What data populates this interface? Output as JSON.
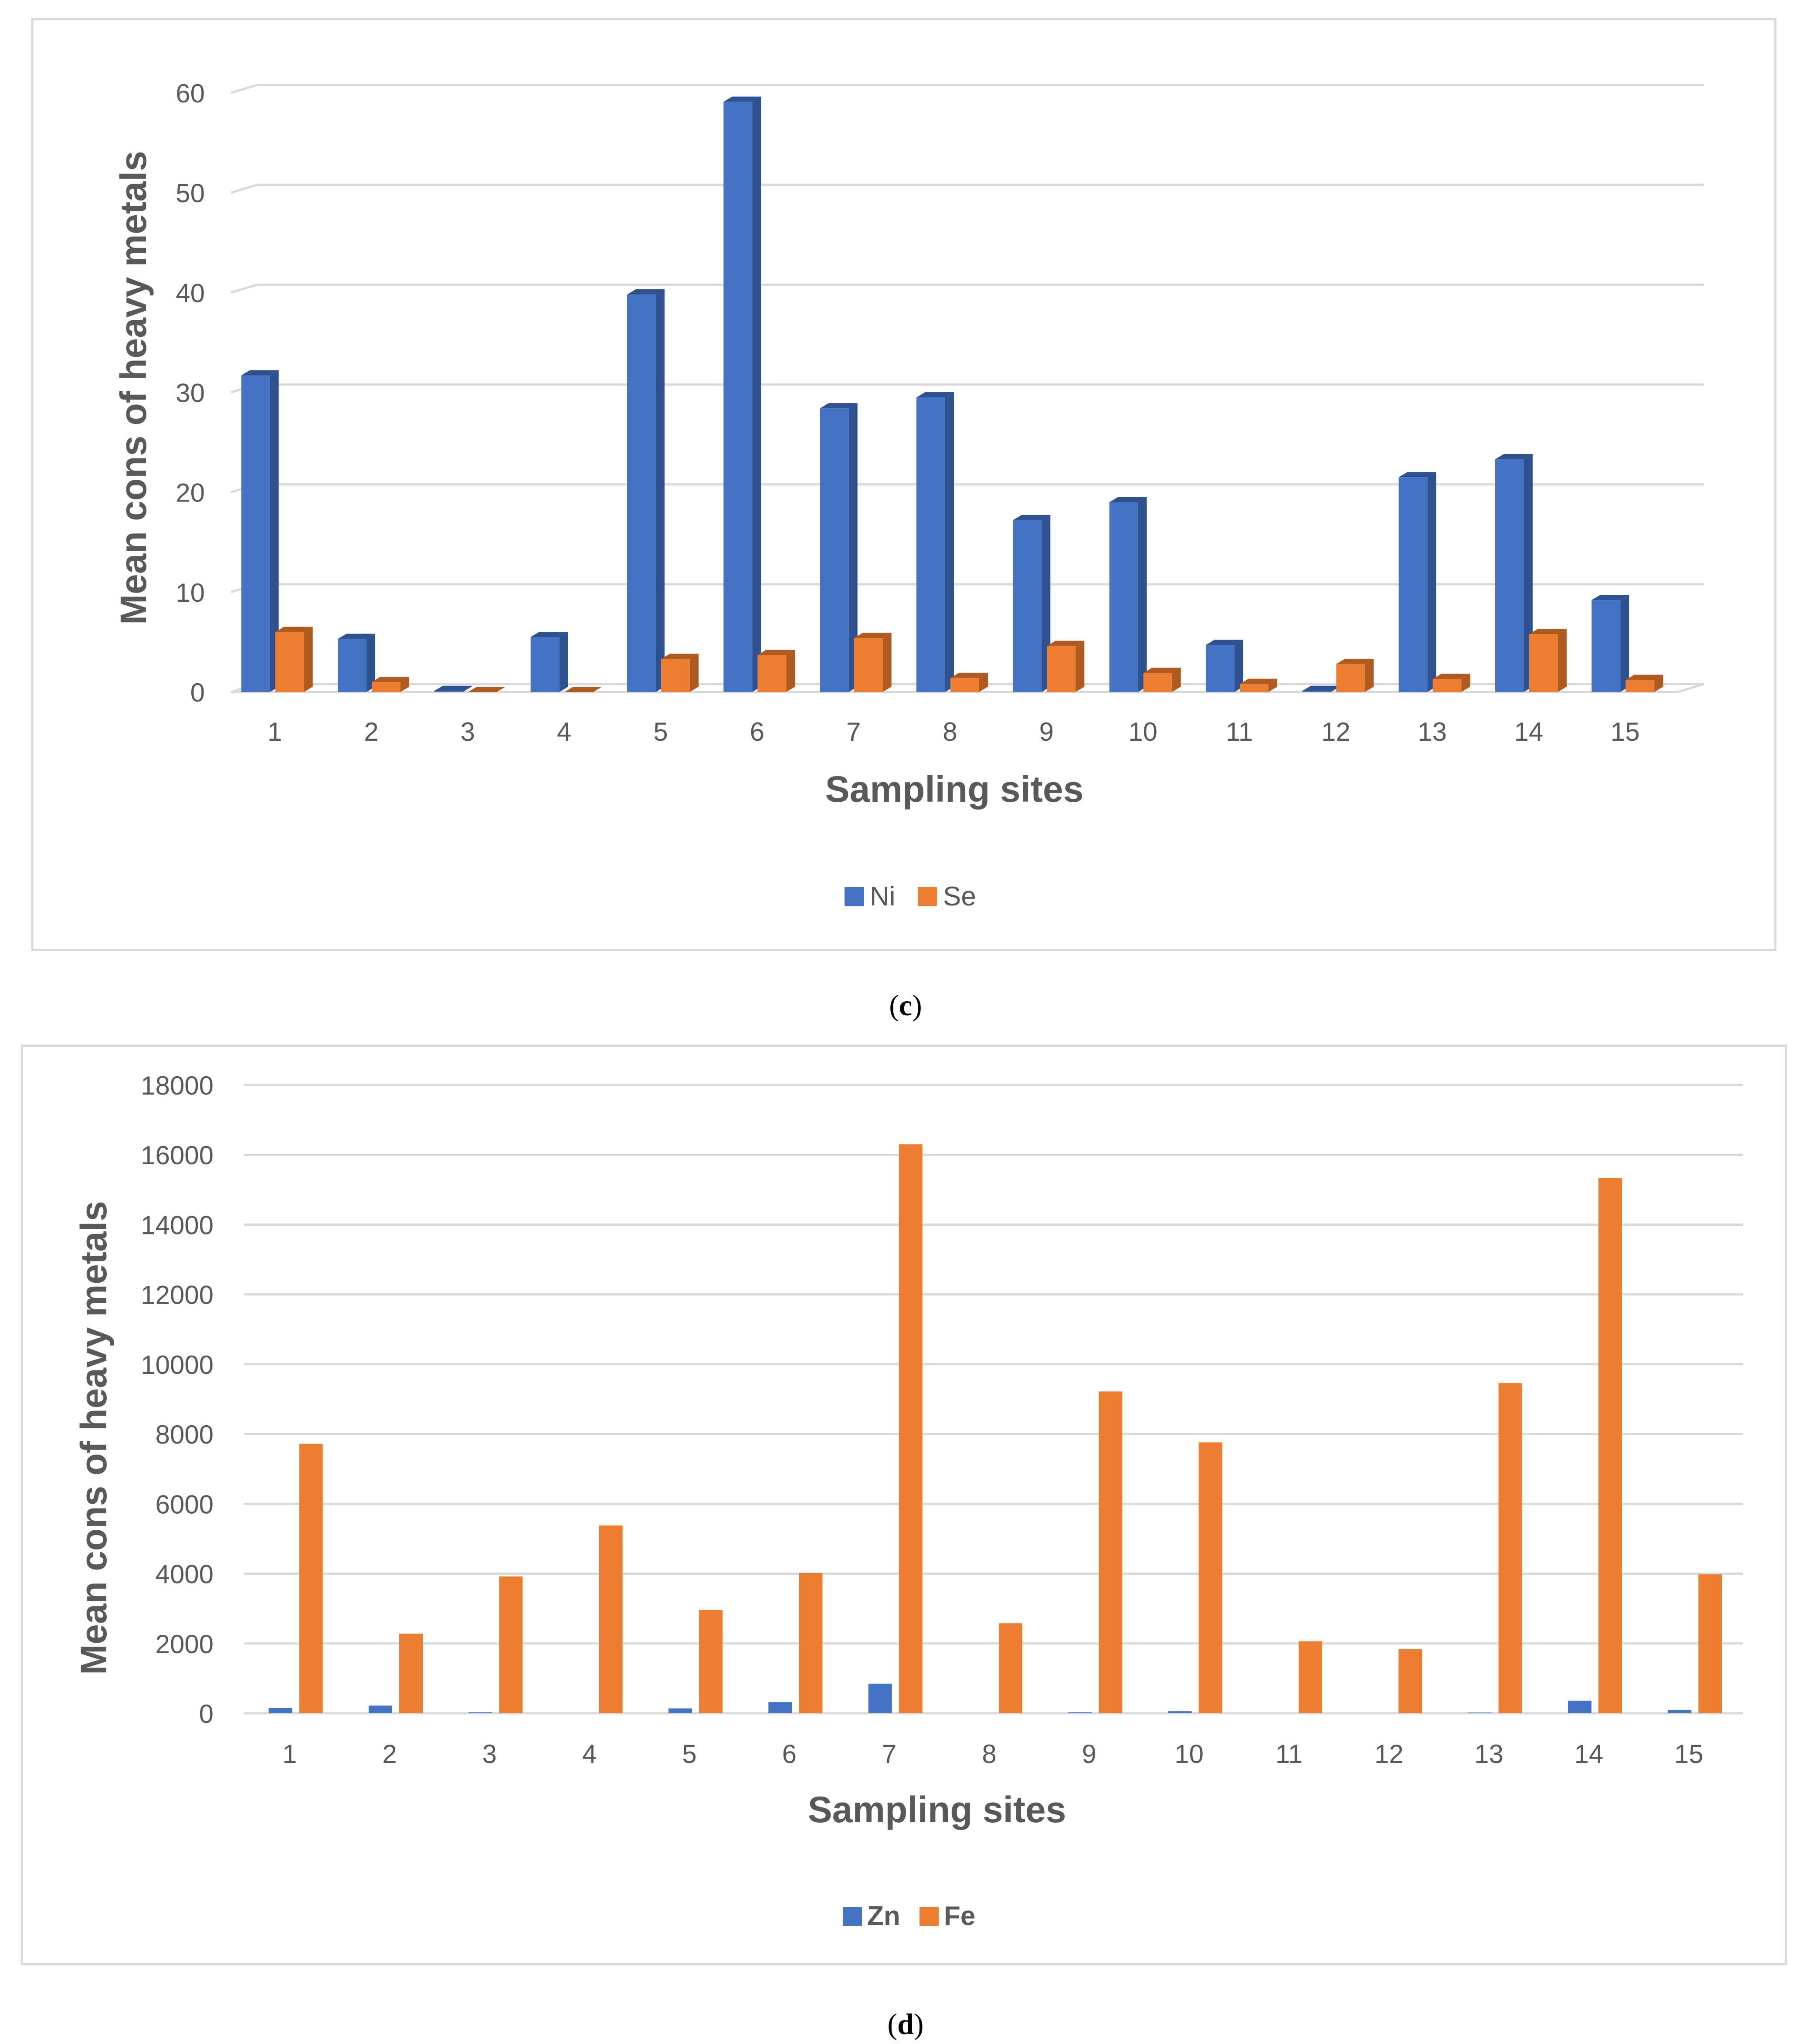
{
  "chart_data": [
    {
      "type": "bar",
      "panel": "c",
      "caption": {
        "open": "(",
        "letter": "c",
        "close": ")"
      },
      "xlabel": "Sampling sites",
      "ylabel": "Mean cons of heavy metals",
      "ylim": [
        0,
        60
      ],
      "yticks": [
        0,
        10,
        20,
        30,
        40,
        50,
        60
      ],
      "categories": [
        "1",
        "2",
        "3",
        "4",
        "5",
        "6",
        "7",
        "8",
        "9",
        "10",
        "11",
        "12",
        "13",
        "14",
        "15"
      ],
      "series": [
        {
          "name": "Ni",
          "color": "#4472C4",
          "side_color": "#2F528F",
          "values": [
            31.7,
            5.3,
            0.1,
            5.5,
            39.8,
            59.1,
            28.4,
            29.5,
            17.2,
            19.0,
            4.7,
            0.1,
            21.5,
            23.3,
            9.2
          ]
        },
        {
          "name": "Se",
          "color": "#ED7D31",
          "side_color": "#AE5A21",
          "values": [
            6.0,
            1.0,
            0.0,
            0.0,
            3.3,
            3.7,
            5.4,
            1.4,
            4.6,
            1.9,
            0.8,
            2.8,
            1.3,
            5.8,
            1.2
          ]
        }
      ],
      "grid": true,
      "legend": "bottom-center",
      "style": "3d"
    },
    {
      "type": "bar",
      "panel": "d",
      "caption": {
        "open": "(",
        "letter": "d",
        "close": ")"
      },
      "xlabel": "Sampling sites",
      "ylabel": "Mean cons of heavy metals",
      "ylim": [
        0,
        18000
      ],
      "yticks": [
        0,
        2000,
        4000,
        6000,
        8000,
        10000,
        12000,
        14000,
        16000,
        18000
      ],
      "categories": [
        "1",
        "2",
        "3",
        "4",
        "5",
        "6",
        "7",
        "8",
        "9",
        "10",
        "11",
        "12",
        "13",
        "14",
        "15"
      ],
      "series": [
        {
          "name": "Zn",
          "color": "#4472C4",
          "values": [
            150,
            220,
            30,
            0,
            140,
            320,
            850,
            0,
            30,
            60,
            0,
            0,
            20,
            360,
            100
          ]
        },
        {
          "name": "Fe",
          "color": "#ED7D31",
          "values": [
            7720,
            2280,
            3920,
            5380,
            2960,
            4020,
            16300,
            2580,
            9220,
            7760,
            2060,
            1840,
            9460,
            15340,
            3980
          ]
        }
      ],
      "grid": true,
      "legend": "bottom-center",
      "style": "flat"
    }
  ]
}
